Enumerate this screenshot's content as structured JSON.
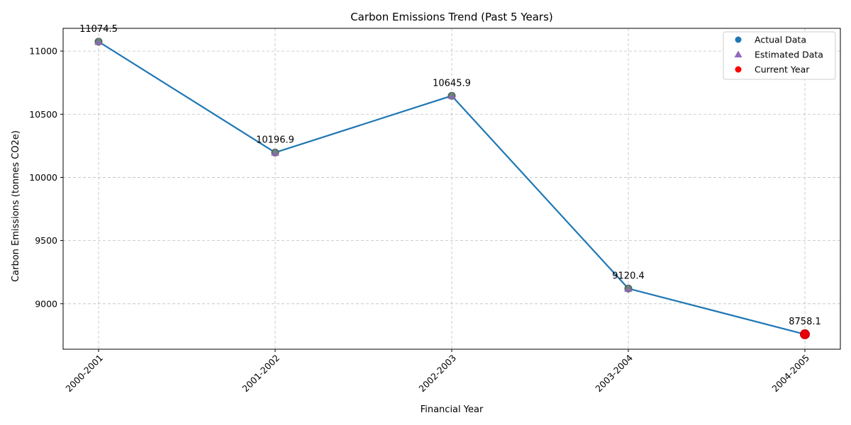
{
  "chart_data": {
    "type": "line",
    "title": "Carbon Emissions Trend (Past 5 Years)",
    "xlabel": "Financial Year",
    "ylabel": "Carbon Emissions (tonnes CO2e)",
    "categories": [
      "2000-2001",
      "2001-2002",
      "2002-2003",
      "2003-2004",
      "2004-2005"
    ],
    "series": [
      {
        "values": [
          11074.5,
          10196.9,
          10645.9,
          9120.4,
          8758.1
        ],
        "color": "#1f77b4"
      }
    ],
    "data_labels": [
      "11074.5",
      "10196.9",
      "10645.9",
      "9120.4",
      "8758.1"
    ],
    "ylim": [
      8640,
      11180
    ],
    "yticks": [
      9000,
      9500,
      10000,
      10500,
      11000
    ],
    "grid": true,
    "legend": {
      "placement": "upper-right",
      "entries": [
        {
          "label": "Actual Data",
          "marker": "circle",
          "color": "#1f77b4"
        },
        {
          "label": "Estimated Data",
          "marker": "triangle",
          "color": "#9467bd"
        },
        {
          "label": "Current Year",
          "marker": "circle",
          "color": "#ff0000"
        }
      ]
    }
  }
}
